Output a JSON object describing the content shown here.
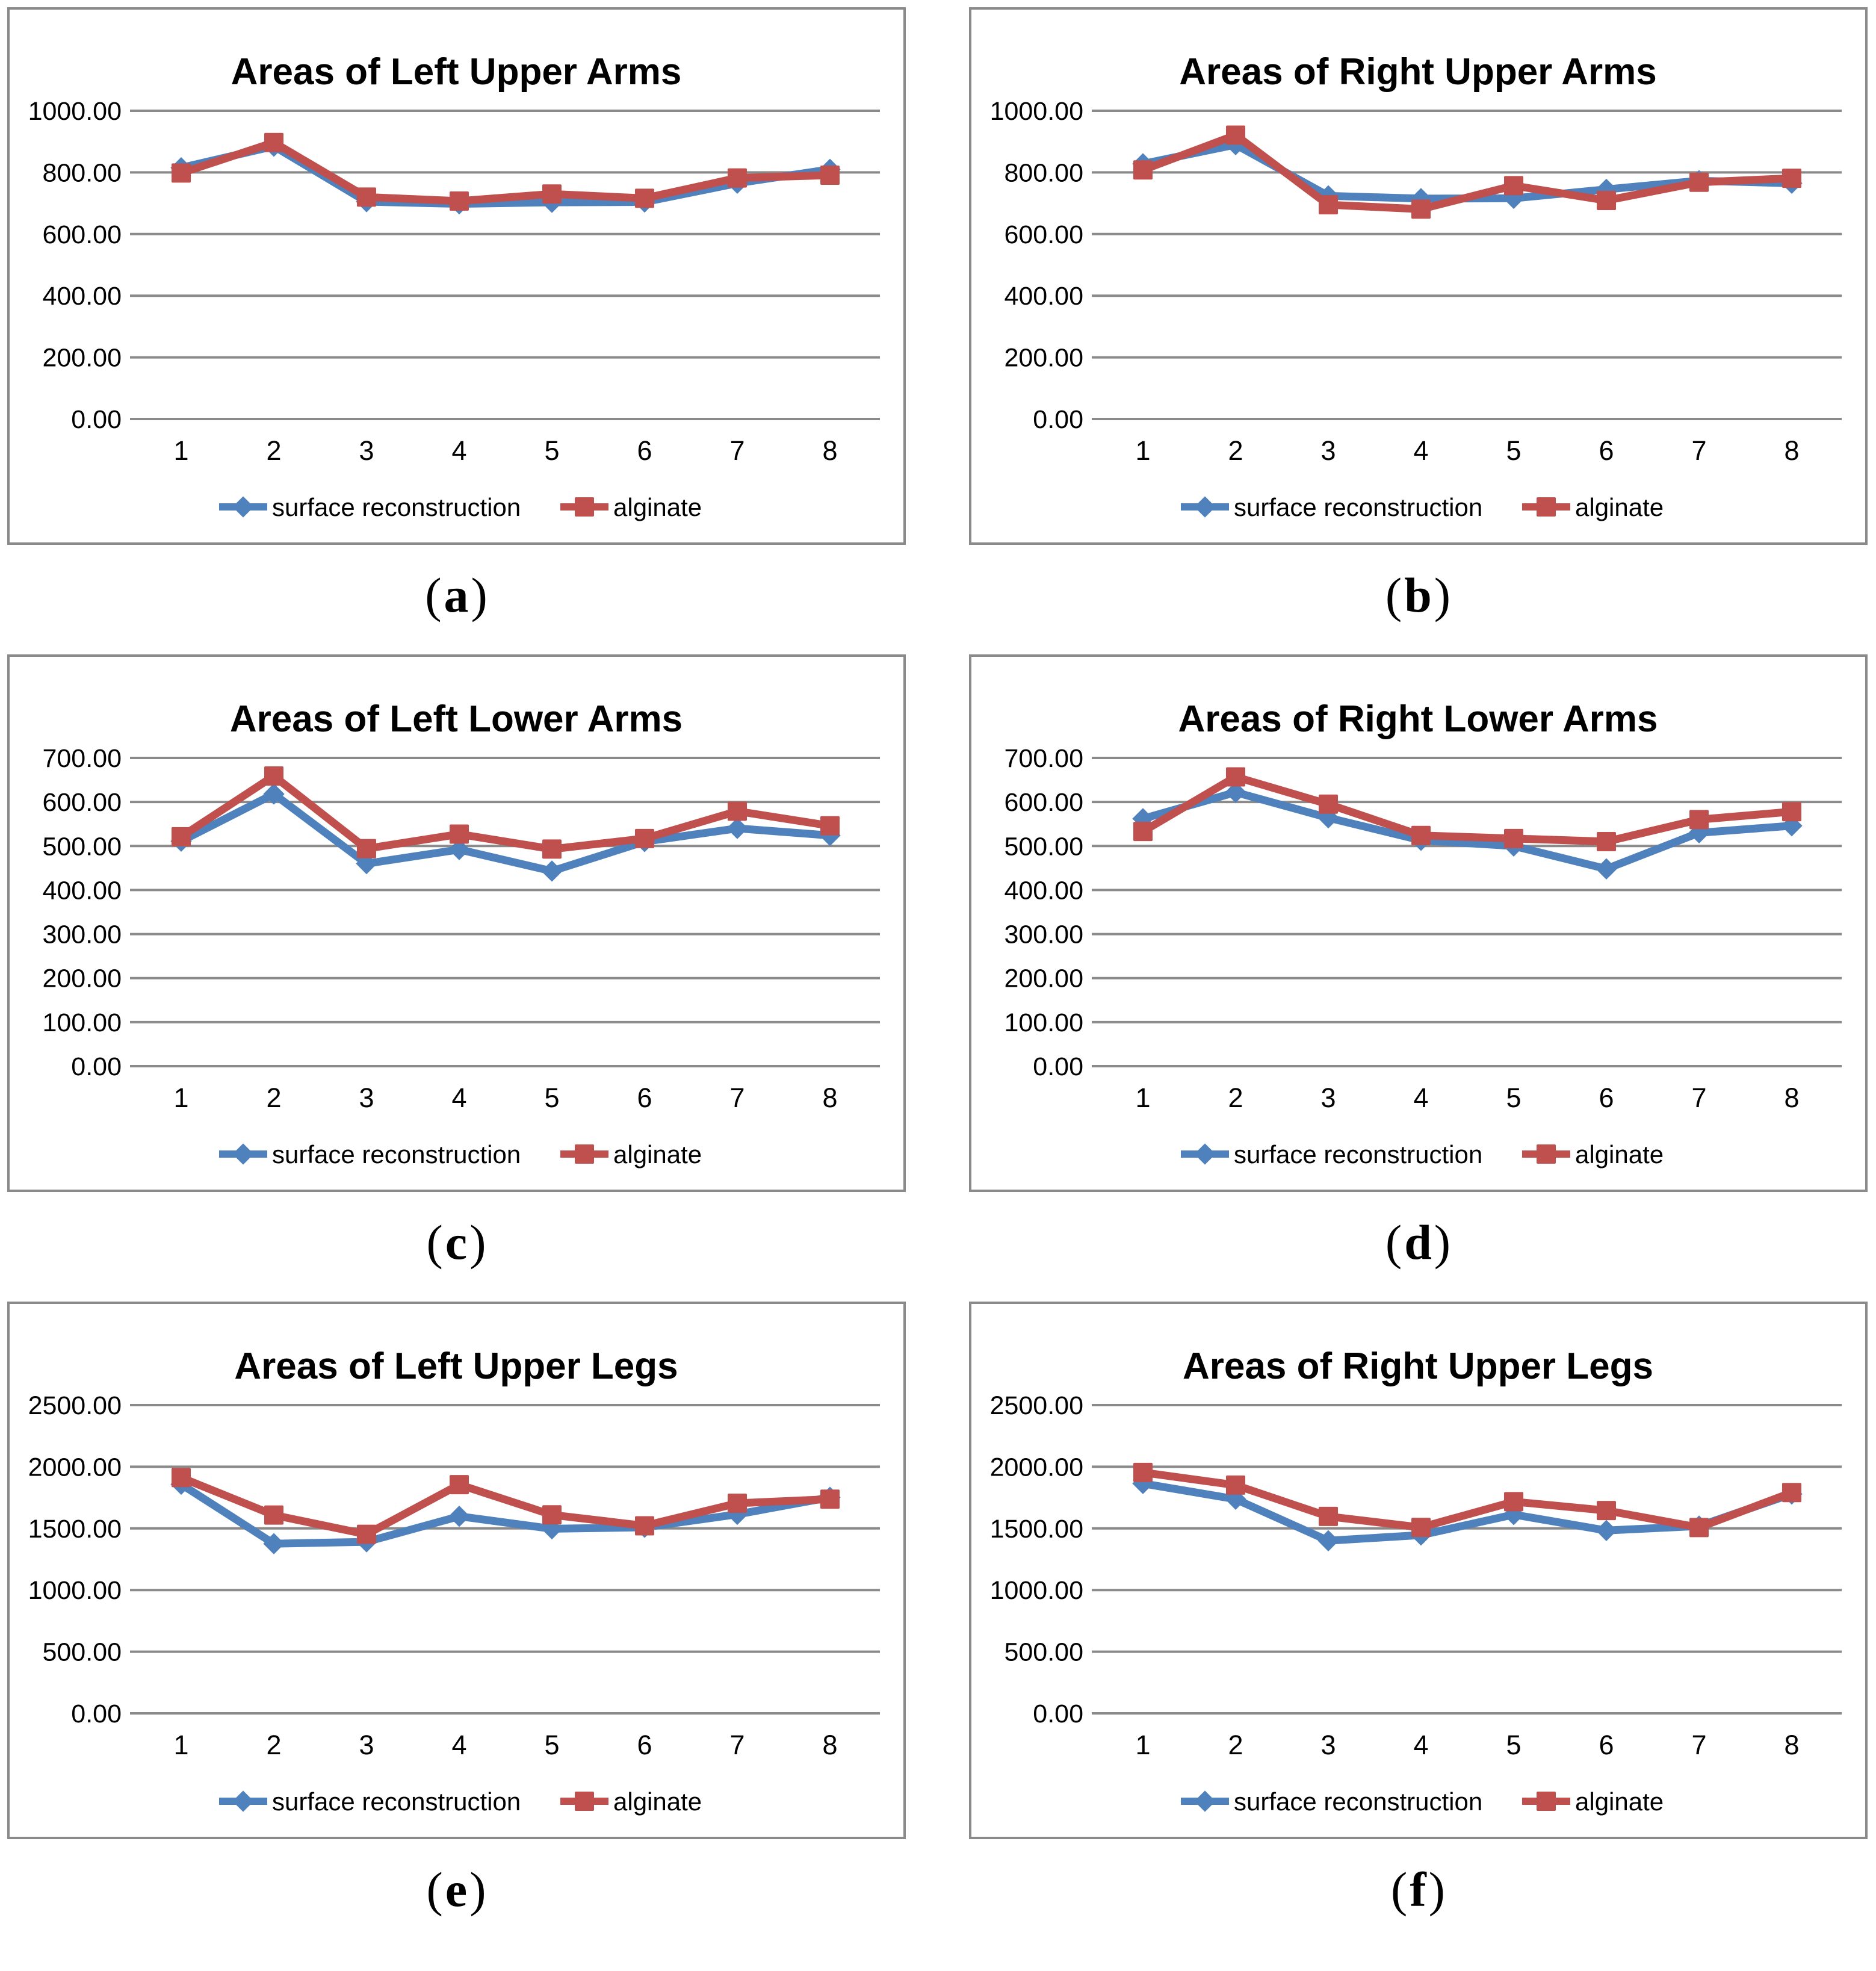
{
  "page": {
    "background": "#FFFFFF",
    "caption_open": "(",
    "caption_close": ")"
  },
  "style": {
    "series1_color": "#4F81BD",
    "series2_color": "#C0504D",
    "gridline_color": "#8A8A8A",
    "panel_border_color": "#8A8A8A",
    "text_color": "#000000",
    "title_color": "#000000"
  },
  "chart_data": [
    {
      "type": "line",
      "caption": "a",
      "title": "Areas of Left Upper Arms",
      "x": [
        "1",
        "2",
        "3",
        "4",
        "5",
        "6",
        "7",
        "8"
      ],
      "ylim": [
        0,
        1000
      ],
      "ystep": 200,
      "ytick_format": "2dp",
      "grid": true,
      "legend_position": "bottom",
      "series": [
        {
          "name": "surface reconstruction",
          "marker": "diamond",
          "color": "#4F81BD",
          "values": [
            815,
            885,
            705,
            698,
            703,
            704,
            765,
            810
          ]
        },
        {
          "name": "alginate",
          "marker": "square",
          "color": "#C0504D",
          "values": [
            798,
            897,
            720,
            707,
            730,
            716,
            782,
            791
          ]
        }
      ]
    },
    {
      "type": "line",
      "caption": "b",
      "title": "Areas of Right Upper Arms",
      "x": [
        "1",
        "2",
        "3",
        "4",
        "5",
        "6",
        "7",
        "8"
      ],
      "ylim": [
        0,
        1000
      ],
      "ystep": 200,
      "ytick_format": "2dp",
      "grid": true,
      "legend_position": "bottom",
      "series": [
        {
          "name": "surface reconstruction",
          "marker": "diamond",
          "color": "#4F81BD",
          "values": [
            828,
            890,
            724,
            715,
            716,
            745,
            773,
            765
          ]
        },
        {
          "name": "alginate",
          "marker": "square",
          "color": "#C0504D",
          "values": [
            808,
            921,
            695,
            681,
            757,
            709,
            768,
            781
          ]
        }
      ]
    },
    {
      "type": "line",
      "caption": "c",
      "title": "Areas of Left Lower Arms",
      "x": [
        "1",
        "2",
        "3",
        "4",
        "5",
        "6",
        "7",
        "8"
      ],
      "ylim": [
        0,
        700
      ],
      "ystep": 100,
      "ytick_format": "2dp",
      "grid": true,
      "legend_position": "bottom",
      "series": [
        {
          "name": "surface reconstruction",
          "marker": "diamond",
          "color": "#4F81BD",
          "values": [
            511,
            618,
            460,
            492,
            443,
            510,
            540,
            524
          ]
        },
        {
          "name": "alginate",
          "marker": "square",
          "color": "#C0504D",
          "values": [
            521,
            659,
            494,
            527,
            493,
            517,
            579,
            546
          ]
        }
      ]
    },
    {
      "type": "line",
      "caption": "d",
      "title": "Areas of Right Lower Arms",
      "x": [
        "1",
        "2",
        "3",
        "4",
        "5",
        "6",
        "7",
        "8"
      ],
      "ylim": [
        0,
        700
      ],
      "ystep": 100,
      "ytick_format": "2dp",
      "grid": true,
      "legend_position": "bottom",
      "series": [
        {
          "name": "surface reconstruction",
          "marker": "diamond",
          "color": "#4F81BD",
          "values": [
            562,
            622,
            564,
            513,
            500,
            448,
            530,
            546
          ]
        },
        {
          "name": "alginate",
          "marker": "square",
          "color": "#C0504D",
          "values": [
            533,
            657,
            595,
            524,
            517,
            510,
            560,
            578
          ]
        }
      ]
    },
    {
      "type": "line",
      "caption": "e",
      "title": "Areas of Left Upper Legs",
      "x": [
        "1",
        "2",
        "3",
        "4",
        "5",
        "6",
        "7",
        "8"
      ],
      "ylim": [
        0,
        2500
      ],
      "ystep": 500,
      "ytick_format": "2dp",
      "grid": true,
      "legend_position": "bottom",
      "series": [
        {
          "name": "surface reconstruction",
          "marker": "diamond",
          "color": "#4F81BD",
          "values": [
            1858,
            1376,
            1391,
            1598,
            1497,
            1509,
            1614,
            1752
          ]
        },
        {
          "name": "alginate",
          "marker": "square",
          "color": "#C0504D",
          "values": [
            1912,
            1608,
            1452,
            1855,
            1610,
            1521,
            1704,
            1737
          ]
        }
      ]
    },
    {
      "type": "line",
      "caption": "f",
      "title": "Areas of Right Upper Legs",
      "x": [
        "1",
        "2",
        "3",
        "4",
        "5",
        "6",
        "7",
        "8"
      ],
      "ylim": [
        0,
        2500
      ],
      "ystep": 500,
      "ytick_format": "2dp",
      "grid": true,
      "legend_position": "bottom",
      "series": [
        {
          "name": "surface reconstruction",
          "marker": "diamond",
          "color": "#4F81BD",
          "values": [
            1864,
            1737,
            1400,
            1446,
            1612,
            1483,
            1519,
            1779
          ]
        },
        {
          "name": "alginate",
          "marker": "square",
          "color": "#C0504D",
          "values": [
            1954,
            1851,
            1597,
            1508,
            1717,
            1645,
            1507,
            1791
          ]
        }
      ]
    }
  ]
}
